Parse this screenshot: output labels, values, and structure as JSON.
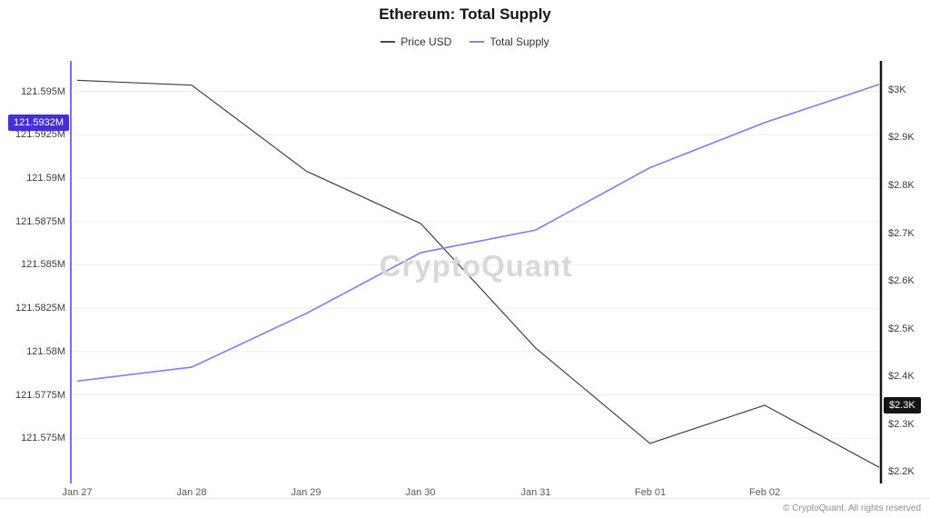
{
  "header": {
    "title": "Ethereum: Total Supply"
  },
  "legend": [
    {
      "label": "Price USD",
      "color": "#4a4a4a"
    },
    {
      "label": "Total Supply",
      "color": "#8781ec"
    }
  ],
  "watermark": "CryptoQuant",
  "footer": {
    "copyright": "© CryptoQuant. All rights reserved"
  },
  "chart_data": {
    "type": "line",
    "title": "Ethereum: Total Supply",
    "grid": "horizontal",
    "legend_position": "top-center",
    "x_tick_labels": [
      "Jan 27",
      "Jan 28",
      "Jan 29",
      "Jan 30",
      "Jan 31",
      "Feb 01",
      "Feb 02"
    ],
    "series": [
      {
        "name": "Price USD",
        "axis": "right",
        "unit": "K USD",
        "color": "#3f3f3f",
        "width": 1.2,
        "values": [
          3.02,
          3.01,
          2.83,
          2.72,
          2.46,
          2.26,
          2.34,
          2.21
        ]
      },
      {
        "name": "Total Supply",
        "axis": "left",
        "unit": "M ETH",
        "color": "#8781ec",
        "width": 1.7,
        "values": [
          121.5783,
          121.5791,
          121.5822,
          121.5857,
          121.587,
          121.5906,
          121.5932,
          121.5954
        ]
      }
    ],
    "left_axis": {
      "min": 121.5725,
      "max": 121.5966,
      "line_color": "#7a6fe6",
      "ticks": [
        {
          "value": 121.595,
          "label": "121.595M"
        },
        {
          "value": 121.5925,
          "label": "121.5925M"
        },
        {
          "value": 121.59,
          "label": "121.59M"
        },
        {
          "value": 121.5875,
          "label": "121.5875M"
        },
        {
          "value": 121.585,
          "label": "121.585M"
        },
        {
          "value": 121.5825,
          "label": "121.5825M"
        },
        {
          "value": 121.58,
          "label": "121.58M"
        },
        {
          "value": 121.5775,
          "label": "121.5775M"
        },
        {
          "value": 121.575,
          "label": "121.575M"
        }
      ],
      "badge": {
        "label": "121.5932M",
        "value": 121.5932,
        "bg": "#4430d4"
      }
    },
    "right_axis": {
      "min": 2.18,
      "max": 3.055,
      "line_color": "#161616",
      "ticks": [
        {
          "value": 3.0,
          "label": "$3K"
        },
        {
          "value": 2.9,
          "label": "$2.9K"
        },
        {
          "value": 2.8,
          "label": "$2.8K"
        },
        {
          "value": 2.7,
          "label": "$2.7K"
        },
        {
          "value": 2.6,
          "label": "$2.6K"
        },
        {
          "value": 2.5,
          "label": "$2.5K"
        },
        {
          "value": 2.4,
          "label": "$2.4K"
        },
        {
          "value": 2.3,
          "label": "$2.3K"
        },
        {
          "value": 2.2,
          "label": "$2.2K"
        }
      ],
      "badge": {
        "label": "$2.3K",
        "value": 2.34,
        "bg": "#141414"
      }
    }
  }
}
